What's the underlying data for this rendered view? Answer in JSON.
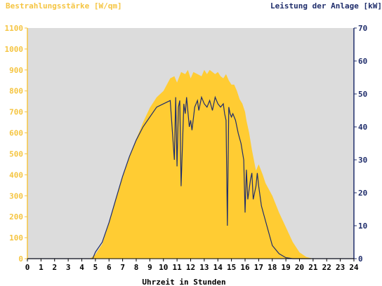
{
  "chart_data": {
    "type": "area",
    "title": "",
    "left_axis_title": "Bestrahlungsstärke [W/qm]",
    "right_axis_title": "Leistung der Anlage [kW]",
    "xlabel": "Uhrzeit in Stunden",
    "xlim": [
      0,
      24
    ],
    "x_ticks": [
      "0",
      "1",
      "2",
      "3",
      "4",
      "5",
      "6",
      "7",
      "8",
      "9",
      "10",
      "11",
      "12",
      "13",
      "14",
      "15",
      "16",
      "17",
      "18",
      "19",
      "20",
      "21",
      "22",
      "23",
      "24"
    ],
    "ylim_left": [
      0,
      1100
    ],
    "y_ticks_left": [
      "0",
      "100",
      "200",
      "300",
      "400",
      "500",
      "600",
      "700",
      "800",
      "900",
      "1000",
      "1100"
    ],
    "ylim_right": [
      0,
      70
    ],
    "y_ticks_right": [
      "0",
      "10",
      "20",
      "30",
      "40",
      "50",
      "60",
      "70"
    ],
    "grid": false,
    "background": "#DCDCDC",
    "series": [
      {
        "name": "Bestrahlungsstärke [W/qm]",
        "axis": "left",
        "style": "area",
        "color": "#FFCC33",
        "x": [
          0,
          4.6,
          5.0,
          5.5,
          6.0,
          6.5,
          7.0,
          7.5,
          8.0,
          8.5,
          9.0,
          9.5,
          10.0,
          10.5,
          10.8,
          11.0,
          11.3,
          11.6,
          11.8,
          12.0,
          12.2,
          12.5,
          12.8,
          13.0,
          13.2,
          13.4,
          13.6,
          13.8,
          14.0,
          14.2,
          14.4,
          14.6,
          14.8,
          15.0,
          15.2,
          15.4,
          15.6,
          15.8,
          16.0,
          16.1,
          16.3,
          16.5,
          16.8,
          17.0,
          17.3,
          17.5,
          18.0,
          18.5,
          19.0,
          19.5,
          20.0,
          20.5,
          21.0,
          24
        ],
        "y": [
          0,
          0,
          20,
          70,
          170,
          290,
          390,
          490,
          570,
          650,
          720,
          770,
          800,
          860,
          870,
          840,
          890,
          880,
          900,
          860,
          890,
          880,
          870,
          900,
          880,
          900,
          890,
          880,
          890,
          870,
          860,
          880,
          850,
          830,
          830,
          800,
          760,
          740,
          700,
          660,
          600,
          520,
          420,
          450,
          400,
          360,
          300,
          220,
          150,
          80,
          30,
          8,
          0,
          0
        ]
      },
      {
        "name": "Leistung der Anlage [kW]",
        "axis": "right",
        "style": "line",
        "color": "#1F2D6B",
        "x": [
          0,
          4.8,
          5.0,
          5.5,
          6.0,
          6.5,
          7.0,
          7.5,
          8.0,
          8.5,
          9.0,
          9.5,
          10.0,
          10.5,
          10.8,
          10.9,
          11.0,
          11.1,
          11.2,
          11.3,
          11.5,
          11.6,
          11.7,
          11.9,
          12.0,
          12.1,
          12.3,
          12.5,
          12.6,
          12.8,
          13.0,
          13.2,
          13.4,
          13.6,
          13.8,
          14.0,
          14.2,
          14.4,
          14.5,
          14.6,
          14.7,
          14.8,
          14.9,
          15.0,
          15.1,
          15.3,
          15.5,
          15.7,
          15.9,
          16.0,
          16.1,
          16.2,
          16.4,
          16.5,
          16.6,
          16.8,
          16.9,
          17.0,
          17.2,
          17.4,
          17.6,
          17.8,
          18.0,
          18.5,
          19.0,
          19.5,
          20.0,
          20.5,
          24
        ],
        "y": [
          0,
          0,
          2,
          5,
          11,
          18,
          25,
          31,
          36,
          40,
          43,
          46,
          47,
          48,
          30,
          49,
          28,
          46,
          48,
          22,
          47,
          44,
          49,
          40,
          42,
          39,
          46,
          48,
          45,
          49,
          47,
          46,
          48,
          45,
          49,
          47,
          46,
          47,
          44,
          42,
          10,
          46,
          44,
          43,
          44,
          42,
          38,
          35,
          30,
          14,
          27,
          18,
          24,
          26,
          18,
          22,
          26,
          22,
          16,
          13,
          10,
          7,
          4,
          1.5,
          0.3,
          0,
          0,
          0,
          0
        ]
      }
    ]
  }
}
